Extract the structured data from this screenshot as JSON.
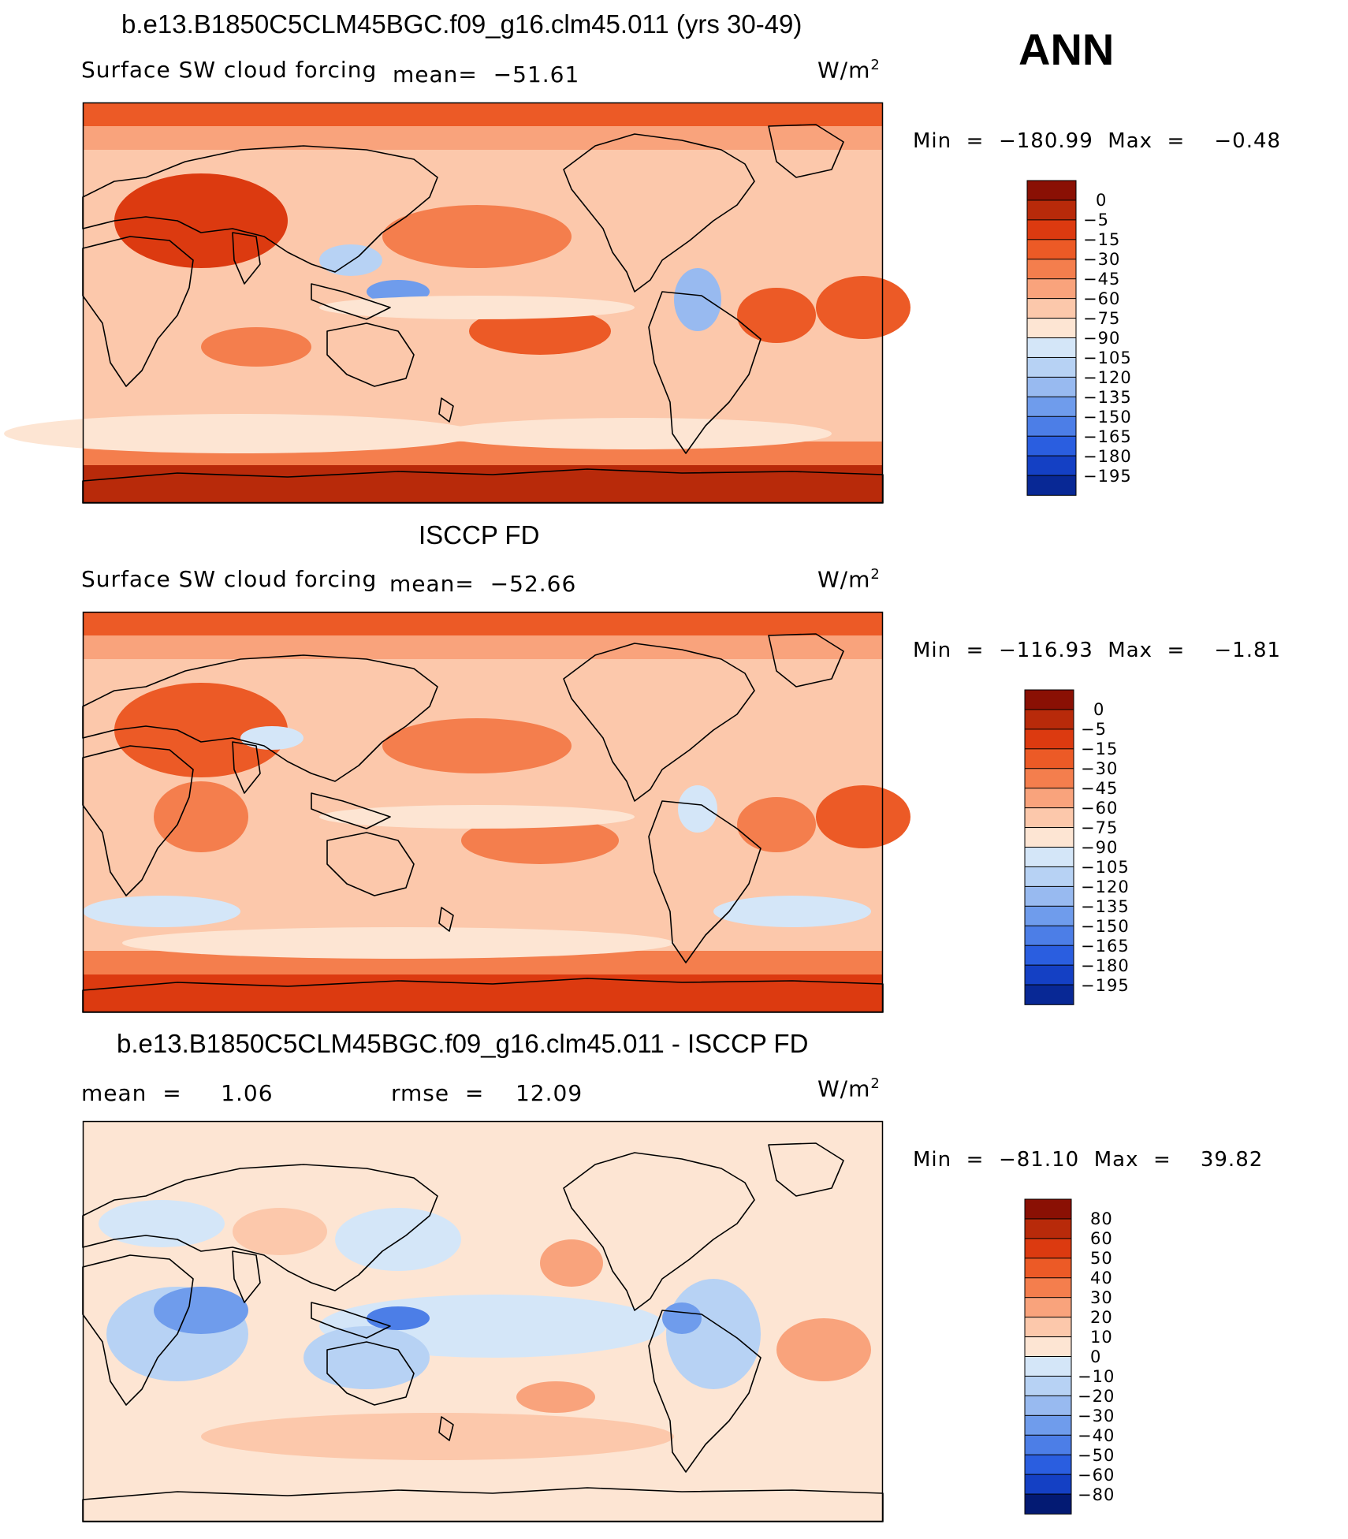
{
  "season": "ANN",
  "colors": {
    "warm": [
      "#fde5d3",
      "#fcc8ab",
      "#f9a37c",
      "#f47e4d",
      "#ec5a26",
      "#dc3a10",
      "#b82a0a",
      "#8a1004"
    ],
    "cool": [
      "#d4e6f8",
      "#b7d2f4",
      "#98baf0",
      "#6f9cec",
      "#4c7ee7",
      "#2a5ee0",
      "#1440c4",
      "#082895",
      "#031a73"
    ],
    "land_outline": "#000000"
  },
  "panels": [
    {
      "title": "b.e13.B1850C5CLM45BGC.f09_g16.clm45.011 (yrs 30-49)",
      "left_label": "Surface SW cloud forcing",
      "center_label": "mean=  −51.61",
      "units_base": "W/m",
      "units_exp": "2",
      "minmax": "Min  =  −180.99  Max  =    −0.48"
    },
    {
      "title": "ISCCP FD",
      "left_label": "Surface SW cloud forcing",
      "center_label": "mean=  −52.66",
      "units_base": "W/m",
      "units_exp": "2",
      "minmax": "Min  =  −116.93  Max  =    −1.81"
    },
    {
      "title": "b.e13.B1850C5CLM45BGC.f09_g16.clm45.011 - ISCCP FD",
      "left_label": "mean  =     1.06",
      "center_label": "rmse  =    12.09",
      "units_base": "W/m",
      "units_exp": "2",
      "minmax": "Min  =  −81.10  Max  =    39.82"
    }
  ],
  "chart_data": [
    {
      "type": "heatmap",
      "title": "b.e13.B1850C5CLM45BGC.f09_g16.clm45.011 (yrs 30-49)",
      "variable": "Surface SW cloud forcing",
      "units": "W/m2",
      "mean": -51.61,
      "min": -180.99,
      "max": -0.48,
      "colorbar_levels": [
        "0",
        "−5",
        "−15",
        "−30",
        "−45",
        "−60",
        "−75",
        "−90",
        "−105",
        "−120",
        "−135",
        "−150",
        "−165",
        "−180",
        "−195"
      ]
    },
    {
      "type": "heatmap",
      "title": "ISCCP FD",
      "variable": "Surface SW cloud forcing",
      "units": "W/m2",
      "mean": -52.66,
      "min": -116.93,
      "max": -1.81,
      "colorbar_levels": [
        "0",
        "−5",
        "−15",
        "−30",
        "−45",
        "−60",
        "−75",
        "−90",
        "−105",
        "−120",
        "−135",
        "−150",
        "−165",
        "−180",
        "−195"
      ]
    },
    {
      "type": "heatmap",
      "title": "b.e13.B1850C5CLM45BGC.f09_g16.clm45.011 - ISCCP FD",
      "units": "W/m2",
      "mean": 1.06,
      "rmse": 12.09,
      "min": -81.1,
      "max": 39.82,
      "colorbar_levels": [
        "80",
        "60",
        "50",
        "40",
        "30",
        "20",
        "10",
        "0",
        "−10",
        "−20",
        "−30",
        "−40",
        "−50",
        "−60",
        "−80"
      ]
    }
  ]
}
